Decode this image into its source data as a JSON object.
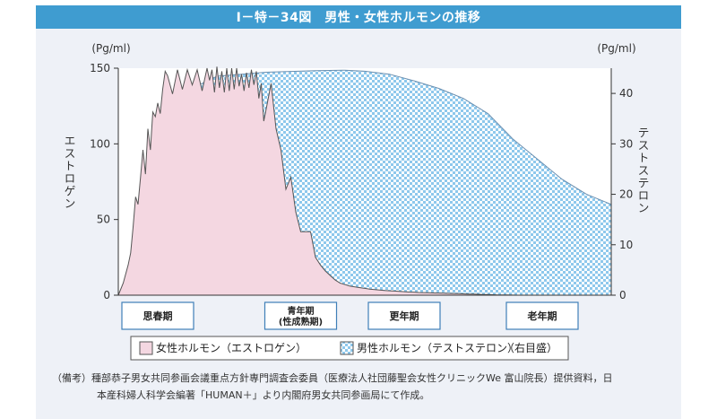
{
  "figure_title": "Ⅰ－特－34図　男性・女性ホルモンの推移",
  "colors": {
    "title_bar": "#3f9cd0",
    "panel_bg": "#eef1f7",
    "estrogen_fill": "#f4d7e1",
    "testosterone_fill": "#a9d6f0",
    "axis": "#333333"
  },
  "chart_data": {
    "type": "area",
    "y_left": {
      "unit": "(Pg/ml)",
      "label": "エストロゲン",
      "ticks": [
        0,
        50,
        100,
        150
      ],
      "range": [
        0,
        150
      ]
    },
    "y_right": {
      "unit": "(Pg/ml)",
      "label": "テストステロン",
      "ticks": [
        0,
        10,
        20,
        30,
        40
      ],
      "range": [
        0,
        45
      ]
    },
    "stages": [
      "思春期",
      "青年期\n(性成熟期)",
      "更年期",
      "老年期"
    ],
    "grid": false,
    "legend_position": "bottom",
    "series": [
      {
        "name": "女性ホルモン（エストロゲン）",
        "axis": "left",
        "x": [
          0,
          1,
          2,
          2.5,
          3,
          3.5,
          4,
          4.5,
          5,
          5.5,
          6,
          6.5,
          7,
          7.5,
          8,
          8.5,
          9,
          9.5,
          10,
          11,
          12,
          13,
          14,
          15,
          16,
          17,
          18,
          18.5,
          19,
          19.5,
          20,
          20.5,
          21,
          21.5,
          22,
          22.5,
          23,
          23.5,
          24,
          24.5,
          25,
          25.5,
          26,
          26.5,
          27,
          27.5,
          28,
          28.5,
          29,
          29.5,
          30,
          31,
          32,
          33,
          34,
          35,
          36,
          37,
          38,
          39,
          40,
          41,
          42,
          43,
          44,
          45,
          46,
          47,
          48,
          49,
          50,
          51,
          52,
          53,
          54,
          55,
          56,
          57,
          58,
          59,
          60,
          61,
          62,
          63,
          64,
          65,
          66,
          67,
          68,
          69,
          70,
          71,
          72,
          73,
          74,
          75,
          76,
          77,
          78,
          79,
          80,
          81,
          82,
          83,
          84,
          85,
          86,
          87,
          88,
          89,
          90,
          91,
          92,
          93,
          94,
          95,
          96,
          97,
          98,
          99,
          100
        ],
        "values": [
          0,
          8,
          20,
          28,
          45,
          65,
          60,
          78,
          96,
          80,
          110,
          96,
          121,
          118,
          127,
          120,
          136,
          148,
          145,
          133,
          149,
          136,
          149,
          139,
          149,
          135,
          150,
          142,
          149,
          134,
          151,
          137,
          148,
          134,
          150,
          135,
          150,
          136,
          150,
          138,
          146,
          135,
          147,
          137,
          149,
          139,
          148,
          130,
          140,
          115,
          123,
          140,
          110,
          96,
          70,
          78,
          55,
          42,
          42,
          42,
          25,
          20,
          16,
          13,
          10,
          8,
          7,
          6,
          5.5,
          5,
          4.5,
          4,
          3.7,
          3.4,
          3.1,
          2.9,
          2.7,
          2.5,
          2.3,
          2.1,
          2,
          1.8,
          1.7,
          1.6,
          1.5,
          1.4,
          1.3,
          1.2,
          1.1,
          1,
          0.9,
          0.8,
          0.7,
          0.6,
          0.5,
          0.4,
          0.3,
          0.2,
          0.15,
          0.1,
          0.05,
          0.02,
          0,
          0,
          0,
          0,
          0,
          0,
          0,
          0,
          0,
          0,
          0,
          0,
          0,
          0,
          0,
          0,
          0,
          0,
          0
        ]
      },
      {
        "name": "男性ホルモン（テストステロン）（右目盛）",
        "axis": "right",
        "x": [
          16,
          20,
          30,
          40,
          46,
          50,
          55,
          60,
          65,
          70,
          75,
          80,
          85,
          90,
          95,
          100
        ],
        "values": [
          41.5,
          43.4,
          44.2,
          44.5,
          44.6,
          44.4,
          43.8,
          42.5,
          41,
          39,
          36,
          31,
          27,
          23,
          20,
          18
        ]
      }
    ],
    "stage_positions": [
      8,
      37,
      58,
      86
    ],
    "x_range": [
      0,
      100
    ]
  },
  "legend": {
    "estrogen": "女性ホルモン（エストロゲン）",
    "testosterone": "男性ホルモン（テストステロン）",
    "right_axis_note": "（右目盛）"
  },
  "notes": {
    "line1": "（備考）種部恭子男女共同参画会議重点方針専門調査会委員（医療法人社団藤聖会女性クリニックWe 富山院長）提供資料，日",
    "line2": "本産科婦人科学会編著「HUMAN＋」より内閣府男女共同参画局にて作成。"
  }
}
